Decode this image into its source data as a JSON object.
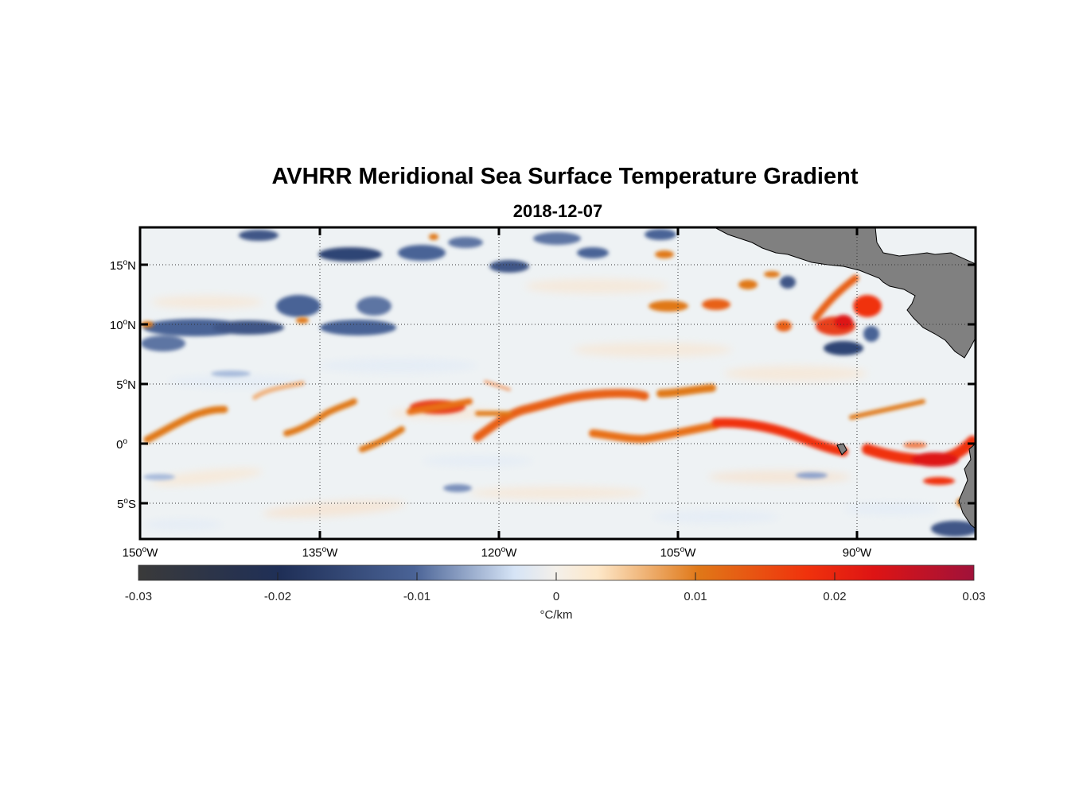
{
  "title": "AVHRR Meridional Sea Surface Temperature Gradient",
  "subtitle": "2018-12-07",
  "map": {
    "lon_range": [
      -150,
      -83
    ],
    "lat_range": [
      -8,
      18
    ],
    "lat_ticks": [
      {
        "value": 15,
        "num": "15",
        "sup": "o",
        "hem": "N"
      },
      {
        "value": 10,
        "num": "10",
        "sup": "o",
        "hem": "N"
      },
      {
        "value": 5,
        "num": "5",
        "sup": "o",
        "hem": "N"
      },
      {
        "value": 0,
        "num": "0",
        "sup": "o",
        "hem": ""
      },
      {
        "value": -5,
        "num": "5",
        "sup": "o",
        "hem": "S"
      }
    ],
    "lon_ticks": [
      {
        "value": -150,
        "num": "150",
        "sup": "o",
        "hem": "W"
      },
      {
        "value": -135,
        "num": "135",
        "sup": "o",
        "hem": "W"
      },
      {
        "value": -120,
        "num": "120",
        "sup": "o",
        "hem": "W"
      },
      {
        "value": -105,
        "num": "105",
        "sup": "o",
        "hem": "W"
      },
      {
        "value": -90,
        "num": "90",
        "sup": "o",
        "hem": "W"
      }
    ],
    "land_color": "#808080",
    "grid": "dotted"
  },
  "colorbar": {
    "ticks": [
      "-0.03",
      "-0.02",
      "-0.01",
      "0",
      "0.01",
      "0.02",
      "0.03"
    ],
    "unit": "°C/km",
    "range": [
      -0.03,
      0.03
    ],
    "colors": [
      "#3a3a3a",
      "#1f2f57",
      "#4a6396",
      "#d6e4f6",
      "#f4f0ea",
      "#fde7c8",
      "#e07818",
      "#f0320c",
      "#de1414",
      "#a0123a"
    ]
  },
  "features": [
    {
      "type": "pos",
      "lon": -148,
      "lat": 1.5
    },
    {
      "type": "pos",
      "lon": -142,
      "lat": 2.8
    },
    {
      "type": "pos",
      "lon": -137,
      "lat": 3.5
    },
    {
      "type": "pos",
      "lon": -133,
      "lat": 2.5
    },
    {
      "type": "pos",
      "lon": -127,
      "lat": 3.0
    },
    {
      "type": "pos",
      "lon": -119,
      "lat": 2.6
    },
    {
      "type": "pos",
      "lon": -112,
      "lat": 4.0
    },
    {
      "type": "pos",
      "lon": -104,
      "lat": 4.3
    },
    {
      "type": "pos",
      "lon": -110,
      "lat": 1.0
    },
    {
      "type": "pos",
      "lon": -100,
      "lat": 1.5
    },
    {
      "type": "pos",
      "lon": -94,
      "lat": 0.8
    },
    {
      "type": "pos",
      "lon": -87,
      "lat": -1.2
    },
    {
      "type": "pos",
      "lon": -104,
      "lat": 11.5
    },
    {
      "type": "pos",
      "lon": -91,
      "lat": 10.2
    },
    {
      "type": "pos",
      "lon": -89,
      "lat": 11.8
    },
    {
      "type": "neg",
      "lon": -146,
      "lat": 9.8
    },
    {
      "type": "neg",
      "lon": -139,
      "lat": 11.5
    },
    {
      "type": "neg",
      "lon": -133,
      "lat": 15.8
    },
    {
      "type": "neg",
      "lon": -125,
      "lat": 15.5
    },
    {
      "type": "neg",
      "lon": -119,
      "lat": 15.0
    },
    {
      "type": "neg",
      "lon": -114,
      "lat": 15.5
    },
    {
      "type": "neg",
      "lon": -133,
      "lat": 10.0
    },
    {
      "type": "neg",
      "lon": -91,
      "lat": 8.2
    }
  ]
}
